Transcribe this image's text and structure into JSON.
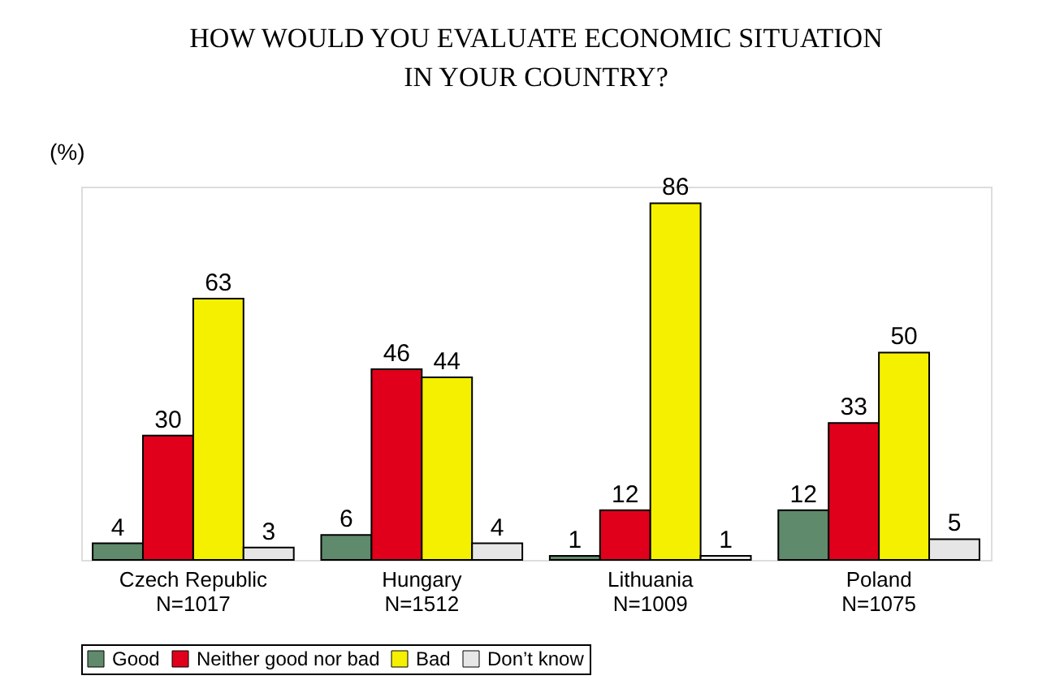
{
  "chart_data": {
    "type": "bar",
    "title": "HOW WOULD YOU EVALUATE ECONOMIC SITUATION\nIN YOUR COUNTRY?",
    "ylabel": "(%)",
    "categories": [
      "Czech Republic\nN=1017",
      "Hungary\nN=1512",
      "Lithuania\nN=1009",
      "Poland\nN=1075"
    ],
    "series": [
      {
        "name": "Good",
        "color": "#5f8a6b",
        "values": [
          4,
          6,
          1,
          12
        ]
      },
      {
        "name": "Neither good nor bad",
        "color": "#e0001b",
        "values": [
          30,
          46,
          12,
          33
        ]
      },
      {
        "name": "Bad",
        "color": "#f5f000",
        "values": [
          63,
          44,
          86,
          50
        ]
      },
      {
        "name": "Don’t know",
        "color": "#e6e6e6",
        "values": [
          3,
          4,
          1,
          5
        ]
      }
    ],
    "data_labels": true,
    "legend": "bottom",
    "grid": false
  }
}
